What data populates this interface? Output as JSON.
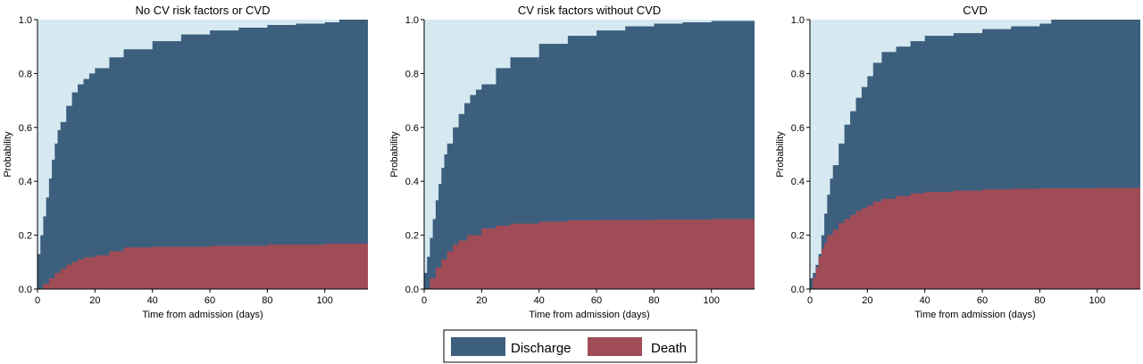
{
  "legend": {
    "items": [
      {
        "label": "Discharge",
        "color": "#3d5f7e"
      },
      {
        "label": "Death",
        "color": "#a04c57"
      }
    ]
  },
  "colors": {
    "background_fill": "#d6e9f1",
    "discharge": "#3d5f7e",
    "death": "#a04c57"
  },
  "chart_data": [
    {
      "type": "area",
      "title": "No CV risk factors or CVD",
      "xlabel": "Time from admission (days)",
      "ylabel": "Probability",
      "xlim": [
        0,
        115
      ],
      "ylim": [
        0,
        1
      ],
      "x_ticks": [
        "0",
        "20",
        "40",
        "60",
        "80",
        "100"
      ],
      "y_ticks": [
        "0.0",
        "0.2",
        "0.4",
        "0.6",
        "0.8",
        "1.0"
      ],
      "series": [
        {
          "name": "Discharge",
          "x": [
            0,
            1,
            2,
            3,
            4,
            5,
            6,
            7,
            8,
            10,
            12,
            14,
            16,
            18,
            20,
            25,
            30,
            40,
            50,
            60,
            70,
            80,
            90,
            100,
            105,
            115
          ],
          "y": [
            0.13,
            0.2,
            0.27,
            0.34,
            0.41,
            0.48,
            0.54,
            0.59,
            0.62,
            0.68,
            0.73,
            0.76,
            0.78,
            0.8,
            0.82,
            0.86,
            0.89,
            0.92,
            0.945,
            0.96,
            0.97,
            0.98,
            0.985,
            0.99,
            1.0,
            1.0
          ]
        },
        {
          "name": "Death",
          "x": [
            0,
            2,
            4,
            6,
            8,
            10,
            12,
            14,
            16,
            20,
            25,
            30,
            40,
            60,
            80,
            100,
            115
          ],
          "y": [
            0.0,
            0.02,
            0.04,
            0.06,
            0.075,
            0.09,
            0.1,
            0.11,
            0.118,
            0.125,
            0.14,
            0.155,
            0.157,
            0.16,
            0.165,
            0.168,
            0.168
          ]
        }
      ]
    },
    {
      "type": "area",
      "title": "CV risk factors without CVD",
      "xlabel": "Time from admission (days)",
      "ylabel": "Probability",
      "xlim": [
        0,
        115
      ],
      "ylim": [
        0,
        1
      ],
      "x_ticks": [
        "0",
        "20",
        "40",
        "60",
        "80",
        "100"
      ],
      "y_ticks": [
        "0.0",
        "0.2",
        "0.4",
        "0.6",
        "0.8",
        "1.0"
      ],
      "series": [
        {
          "name": "Discharge",
          "x": [
            0,
            1,
            2,
            3,
            4,
            5,
            6,
            7,
            8,
            10,
            12,
            14,
            16,
            18,
            20,
            25,
            30,
            40,
            50,
            60,
            70,
            80,
            90,
            100,
            115
          ],
          "y": [
            0.06,
            0.12,
            0.19,
            0.26,
            0.33,
            0.39,
            0.45,
            0.5,
            0.54,
            0.6,
            0.65,
            0.69,
            0.72,
            0.74,
            0.76,
            0.82,
            0.86,
            0.91,
            0.94,
            0.96,
            0.975,
            0.985,
            0.99,
            0.995,
            0.995
          ]
        },
        {
          "name": "Death",
          "x": [
            0,
            2,
            4,
            6,
            8,
            10,
            12,
            15,
            20,
            25,
            30,
            40,
            50,
            60,
            80,
            100,
            115
          ],
          "y": [
            0.0,
            0.04,
            0.08,
            0.11,
            0.14,
            0.165,
            0.18,
            0.2,
            0.225,
            0.235,
            0.243,
            0.25,
            0.255,
            0.256,
            0.258,
            0.26,
            0.26
          ]
        }
      ]
    },
    {
      "type": "area",
      "title": "CVD",
      "xlabel": "Time from admission (days)",
      "ylabel": "Probability",
      "xlim": [
        0,
        115
      ],
      "ylim": [
        0,
        1
      ],
      "x_ticks": [
        "0",
        "20",
        "40",
        "60",
        "80",
        "100"
      ],
      "y_ticks": [
        "0.0",
        "0.2",
        "0.4",
        "0.6",
        "0.8",
        "1.0"
      ],
      "series": [
        {
          "name": "Discharge",
          "x": [
            0,
            1,
            2,
            3,
            4,
            5,
            6,
            7,
            8,
            10,
            12,
            14,
            16,
            18,
            20,
            22,
            25,
            30,
            35,
            40,
            50,
            60,
            70,
            80,
            84,
            115
          ],
          "y": [
            0.04,
            0.06,
            0.09,
            0.13,
            0.2,
            0.28,
            0.35,
            0.41,
            0.46,
            0.54,
            0.61,
            0.66,
            0.71,
            0.75,
            0.79,
            0.84,
            0.88,
            0.9,
            0.92,
            0.94,
            0.95,
            0.965,
            0.975,
            0.985,
            1.0,
            1.0
          ]
        },
        {
          "name": "Death",
          "x": [
            0,
            1,
            2,
            3,
            4,
            5,
            6,
            8,
            10,
            12,
            14,
            16,
            18,
            20,
            22,
            25,
            30,
            35,
            40,
            50,
            60,
            70,
            80,
            100,
            115
          ],
          "y": [
            0.0,
            0.04,
            0.08,
            0.12,
            0.15,
            0.17,
            0.2,
            0.22,
            0.245,
            0.26,
            0.275,
            0.29,
            0.3,
            0.31,
            0.325,
            0.335,
            0.345,
            0.355,
            0.36,
            0.365,
            0.37,
            0.372,
            0.374,
            0.375,
            0.375
          ]
        }
      ]
    }
  ]
}
